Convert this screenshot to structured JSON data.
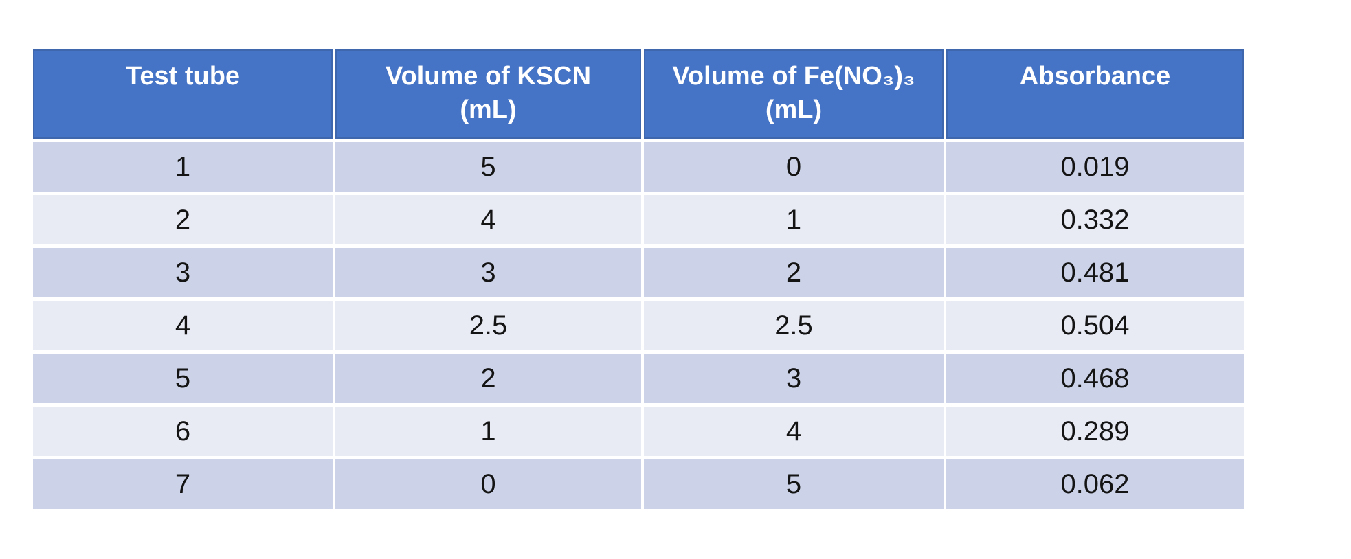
{
  "chart_data": {
    "type": "table",
    "columns": [
      {
        "label": "Test tube",
        "sub": ""
      },
      {
        "label": "Volume of KSCN",
        "sub": "(mL)"
      },
      {
        "label": "Volume of Fe(NO₃)₃",
        "sub": "(mL)"
      },
      {
        "label": "Absorbance",
        "sub": ""
      }
    ],
    "rows": [
      [
        "1",
        "5",
        "0",
        "0.019"
      ],
      [
        "2",
        "4",
        "1",
        "0.332"
      ],
      [
        "3",
        "3",
        "2",
        "0.481"
      ],
      [
        "4",
        "2.5",
        "2.5",
        "0.504"
      ],
      [
        "5",
        "2",
        "3",
        "0.468"
      ],
      [
        "6",
        "1",
        "4",
        "0.289"
      ],
      [
        "7",
        "0",
        "5",
        "0.062"
      ]
    ]
  },
  "colors": {
    "page_bg": "#ffffff",
    "header_bg": "#4573c5",
    "header_border": "#3e67ad",
    "header_text": "#ffffff",
    "row_odd_bg": "#ccd3e8",
    "row_even_bg": "#e8eaf4",
    "body_text": "#141414"
  }
}
